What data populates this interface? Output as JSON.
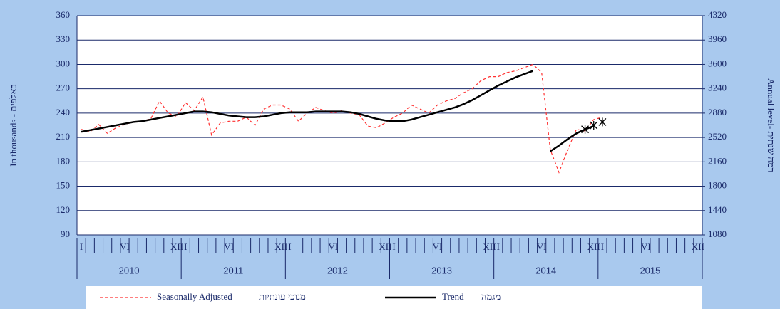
{
  "chart_data": {
    "type": "line",
    "y_label": "In thousands - באלפים",
    "y2_label": "Annual level- רמה שנתית",
    "categories": [
      "I",
      null,
      null,
      null,
      null,
      "VI",
      null,
      null,
      null,
      null,
      null,
      "XII",
      "I",
      null,
      null,
      null,
      null,
      "VI",
      null,
      null,
      null,
      null,
      null,
      "XII",
      "I",
      null,
      null,
      null,
      null,
      "VI",
      null,
      null,
      null,
      null,
      null,
      "XII",
      "I",
      null,
      null,
      null,
      null,
      "VI",
      null,
      null,
      null,
      null,
      null,
      "XII",
      "I",
      null,
      null,
      null,
      null,
      "VI",
      null,
      null,
      null,
      null,
      null,
      "XII",
      "I",
      null,
      null,
      null,
      null,
      "VI",
      null,
      null,
      null,
      null,
      null,
      "XII"
    ],
    "years": [
      "2010",
      "2011",
      "2012",
      "2013",
      "2014",
      "2015"
    ],
    "ylim": [
      90,
      360
    ],
    "yticks": [
      90,
      120,
      150,
      180,
      210,
      240,
      270,
      300,
      330,
      360
    ],
    "y2lim": [
      1080,
      4320
    ],
    "y2ticks": [
      1080,
      1440,
      1800,
      2160,
      2520,
      2880,
      3240,
      3600,
      3960,
      4320
    ],
    "grid": true,
    "series": [
      {
        "name": "Seasonally Adjusted",
        "name_he": "מנוכי עונתיות",
        "color": "#ff3030",
        "dash": true,
        "values": [
          220,
          217,
          226,
          215,
          222,
          226,
          229,
          230,
          233,
          255,
          240,
          236,
          253,
          243,
          260,
          213,
          228,
          230,
          230,
          235,
          225,
          245,
          250,
          250,
          245,
          230,
          240,
          247,
          243,
          240,
          243,
          240,
          238,
          224,
          222,
          228,
          235,
          240,
          250,
          245,
          240,
          250,
          255,
          258,
          265,
          270,
          280,
          285,
          285,
          290,
          292,
          296,
          300,
          290,
          195,
          167,
          195,
          220,
          218,
          232,
          235,
          null,
          null,
          null,
          null,
          null,
          null,
          null,
          null,
          null,
          null,
          null
        ]
      },
      {
        "name": "Trend",
        "name_he": "מגמה",
        "color": "#000000",
        "dash": false,
        "values": [
          217,
          219,
          221,
          223,
          225,
          227,
          229,
          230,
          232,
          234,
          236,
          238,
          240,
          242,
          242,
          241,
          239,
          237,
          236,
          235,
          235,
          236,
          238,
          240,
          241,
          241,
          241,
          242,
          242,
          242,
          242,
          241,
          239,
          236,
          233,
          231,
          230,
          230,
          232,
          235,
          238,
          241,
          244,
          247,
          251,
          256,
          262,
          268,
          274,
          279,
          284,
          288,
          292,
          null,
          193,
          200,
          208,
          215,
          220,
          224,
          null,
          null,
          null,
          null,
          null,
          null,
          null,
          null,
          null,
          null,
          null,
          null
        ]
      },
      {
        "marker": "asterisk",
        "color": "#000000",
        "values": [
          null,
          null,
          null,
          null,
          null,
          null,
          null,
          null,
          null,
          null,
          null,
          null,
          null,
          null,
          null,
          null,
          null,
          null,
          null,
          null,
          null,
          null,
          null,
          null,
          null,
          null,
          null,
          null,
          null,
          null,
          null,
          null,
          null,
          null,
          null,
          null,
          null,
          null,
          null,
          null,
          null,
          null,
          null,
          null,
          null,
          null,
          null,
          null,
          null,
          null,
          null,
          null,
          null,
          null,
          null,
          null,
          null,
          null,
          220,
          225,
          229,
          null,
          null,
          null,
          null,
          null,
          null,
          null,
          null,
          null,
          null,
          null
        ]
      }
    ]
  }
}
